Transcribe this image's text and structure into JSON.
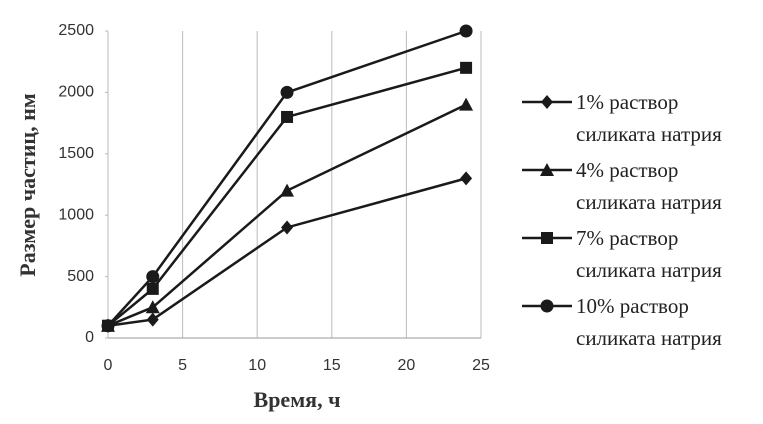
{
  "chart_data": {
    "type": "line",
    "x_label": "Время, ч",
    "y_label": "Размер частиц, нм",
    "x": [
      0,
      3,
      12,
      24
    ],
    "series": [
      {
        "name": "1% раствор силиката натрия",
        "color": "#1a1a1a",
        "marker": "diamond",
        "values": [
          100,
          150,
          900,
          1300
        ]
      },
      {
        "name": "4% раствор силиката натрия",
        "color": "#1a1a1a",
        "marker": "triangle",
        "values": [
          100,
          250,
          1200,
          1900
        ]
      },
      {
        "name": "7% раствор силиката натрия",
        "color": "#1a1a1a",
        "marker": "square",
        "values": [
          100,
          400,
          1800,
          2200
        ]
      },
      {
        "name": "10% раствор силиката натрия",
        "color": "#1a1a1a",
        "marker": "circle",
        "values": [
          100,
          500,
          2000,
          2500
        ]
      }
    ],
    "xlim": [
      0,
      25
    ],
    "xticks": [
      0,
      5,
      10,
      15,
      20,
      25
    ],
    "ylim": [
      0,
      2500
    ],
    "yticks": [
      0,
      500,
      1000,
      1500,
      2000,
      2500
    ],
    "grid": "x",
    "legend": "right"
  }
}
